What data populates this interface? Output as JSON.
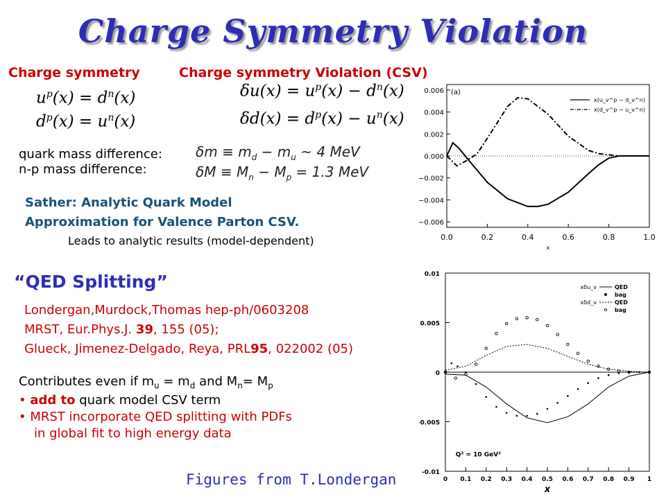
{
  "title": "Charge Symmetry Violation",
  "headings": {
    "cs": "Charge symmetry",
    "csv": "Charge symmetry Violation (CSV)"
  },
  "cs_equations": [
    "u^p(x) = d^n(x)",
    "d^p(x) = u^n(x)"
  ],
  "csv_equations": [
    "δu(x) = u^p(x) − d^n(x)",
    "δd(x) = d^p(x) − u^n(x)"
  ],
  "mass": {
    "quark_label": "quark mass difference:",
    "np_label": "n-p mass difference:",
    "quark_eq": "δm ≡ m_d − m_u ~ 4 MeV",
    "np_eq": "δM ≡ M_n − M_p = 1.3 MeV"
  },
  "sather": {
    "line1": "Sather: Analytic Quark Model",
    "line2": "Approximation for Valence Parton CSV.",
    "line3": "Leads to analytic results (model-dependent)"
  },
  "qed": {
    "heading": "QED Splitting",
    "open_quote": "“",
    "close_quote": "”",
    "refs": [
      "Londergan,Murdock,Thomas hep-ph/0603208",
      "MRST, Eur.Phys.J. 39, 155 (05);",
      "Glueck, Jimenez-Delgado, Reya, PRL95, 022002 (05)"
    ],
    "contributes": "Contributes even if m_u = m_d and M_n= M_p",
    "bullet1_bold": "add to",
    "bullet1_rest": " quark model CSV term",
    "bullet2_line1": "MRST incorporate QED splitting with PDFs",
    "bullet2_line2": "in global fit to high energy data"
  },
  "footer": "Figures from T.Londergan",
  "colors": {
    "title": "#2d2db8",
    "red": "#cc0000"
  },
  "chart_data": [
    {
      "type": "line",
      "panel_label": "(a)",
      "xlabel": "x",
      "x_ticks": [
        "0.0",
        "0.2",
        "0.4",
        "0.6",
        "0.8",
        "1.0"
      ],
      "y_ticks": [
        "0.006",
        "0.004",
        "0.002",
        "0.000",
        "−0.002",
        "−0.004",
        "−0.006"
      ],
      "xlim": [
        0,
        1
      ],
      "ylim": [
        -0.0065,
        0.0065
      ],
      "series": [
        {
          "name": "x(u_v^p − d_v^n)",
          "style": "solid",
          "x": [
            0.0,
            0.03,
            0.06,
            0.1,
            0.15,
            0.2,
            0.3,
            0.4,
            0.45,
            0.5,
            0.6,
            0.7,
            0.75,
            0.8,
            0.85,
            1.0
          ],
          "y": [
            0.0,
            0.0012,
            0.0007,
            -0.0002,
            -0.0013,
            -0.0024,
            -0.0039,
            -0.0046,
            -0.0046,
            -0.0044,
            -0.0033,
            -0.0016,
            -0.0008,
            -0.0002,
            0.0,
            0.0
          ]
        },
        {
          "name": "x(d_v^p − u_v^n)",
          "style": "dash-dot",
          "x": [
            0.0,
            0.05,
            0.1,
            0.15,
            0.2,
            0.3,
            0.35,
            0.4,
            0.5,
            0.6,
            0.7,
            0.75,
            0.8,
            0.85,
            1.0
          ],
          "y": [
            0.0,
            -0.0009,
            -0.0004,
            0.0002,
            0.0016,
            0.0045,
            0.0053,
            0.0052,
            0.0038,
            0.0018,
            0.0005,
            0.0002,
            0.0001,
            0.0,
            0.0
          ]
        }
      ]
    },
    {
      "type": "line",
      "x_ticks": [
        "0",
        "0.1",
        "0.2",
        "0.3",
        "0.4",
        "0.5",
        "0.6",
        "0.7",
        "0.8",
        "0.9",
        "1"
      ],
      "y_ticks": [
        "0.01",
        "0.005",
        "0",
        "-0.005",
        "-0.01"
      ],
      "xlabel": "x",
      "xlim": [
        0,
        1
      ],
      "ylim": [
        -0.01,
        0.01
      ],
      "annotation": "Q² = 10 GeV²",
      "legend": [
        {
          "group": "xδu_v",
          "items": [
            "QED",
            "bag"
          ]
        },
        {
          "group": "xδd_v",
          "items": [
            "QED",
            "bag"
          ]
        }
      ],
      "series": [
        {
          "name": "xδu_v QED",
          "style": "solid",
          "x": [
            0.0,
            0.1,
            0.2,
            0.3,
            0.4,
            0.5,
            0.6,
            0.7,
            0.8,
            0.9,
            1.0
          ],
          "y": [
            -0.0002,
            -0.0003,
            -0.0015,
            -0.0032,
            -0.0046,
            -0.0051,
            -0.0045,
            -0.0032,
            -0.0015,
            -0.0004,
            0.0
          ]
        },
        {
          "name": "xδu_v bag",
          "style": "dots",
          "x": [
            0.0,
            0.03,
            0.06,
            0.1,
            0.15,
            0.2,
            0.25,
            0.3,
            0.35,
            0.4,
            0.45,
            0.5,
            0.55,
            0.6,
            0.65,
            0.7,
            0.75,
            0.8,
            0.85,
            0.9,
            0.95,
            1.0
          ],
          "y": [
            0.0,
            0.0009,
            0.0006,
            0.0,
            -0.0012,
            -0.0025,
            -0.0035,
            -0.0041,
            -0.0044,
            -0.0044,
            -0.0042,
            -0.0037,
            -0.0031,
            -0.0024,
            -0.0017,
            -0.0011,
            -0.0006,
            -0.0003,
            -0.0001,
            0.0,
            0.0,
            0.0
          ]
        },
        {
          "name": "xδd_v QED",
          "style": "dotted",
          "x": [
            0.0,
            0.1,
            0.2,
            0.3,
            0.4,
            0.5,
            0.6,
            0.7,
            0.8,
            0.9,
            1.0
          ],
          "y": [
            0.0002,
            0.0006,
            0.0017,
            0.0026,
            0.0028,
            0.0024,
            0.0016,
            0.0008,
            0.0003,
            0.0001,
            0.0
          ]
        },
        {
          "name": "xδd_v bag",
          "style": "circles",
          "x": [
            0.0,
            0.05,
            0.1,
            0.15,
            0.2,
            0.25,
            0.3,
            0.35,
            0.4,
            0.45,
            0.5,
            0.55,
            0.6,
            0.65,
            0.7,
            0.75,
            0.8,
            0.85,
            0.9,
            1.0
          ],
          "y": [
            0.0,
            -0.0006,
            -0.0002,
            0.0008,
            0.0024,
            0.0039,
            0.0049,
            0.0054,
            0.0055,
            0.0053,
            0.0047,
            0.0038,
            0.0028,
            0.0019,
            0.0011,
            0.0006,
            0.0003,
            0.0001,
            0.0,
            0.0
          ]
        }
      ]
    }
  ]
}
